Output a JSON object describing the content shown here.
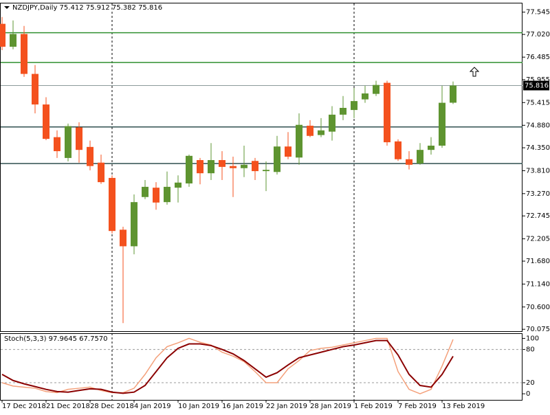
{
  "chart_data": [
    {
      "type": "candlestick",
      "title": "NZDJPY,Daily  75.412 75.912 75.382 75.816",
      "categories": [
        "17 Dec 2018",
        null,
        null,
        null,
        "21 Dec 2018",
        null,
        null,
        null,
        "28 Dec 2018",
        null,
        null,
        null,
        "4 Jan 2019",
        null,
        null,
        null,
        "10 Jan 2019",
        null,
        null,
        null,
        "16 Jan 2019",
        null,
        null,
        null,
        "22 Jan 2019",
        null,
        null,
        null,
        "28 Jan 2019",
        null,
        null,
        null,
        "1 Feb 2019",
        null,
        null,
        null,
        "7 Feb 2019",
        null,
        null,
        null,
        "13 Feb 2019",
        null
      ],
      "open": [
        77.27,
        76.73,
        77.03,
        76.09,
        75.37,
        74.6,
        74.11,
        74.83,
        74.37,
        74.0,
        73.64,
        72.42,
        72.03,
        73.19,
        73.41,
        73.07,
        73.41,
        73.51,
        74.06,
        73.75,
        74.06,
        73.92,
        73.87,
        74.04,
        73.8,
        73.78,
        74.38,
        74.12,
        74.87,
        74.65,
        74.73,
        75.13,
        75.24,
        75.49,
        75.62,
        75.88,
        74.5,
        74.08,
        73.98,
        74.3,
        74.4,
        75.412
      ],
      "high": [
        77.43,
        77.35,
        77.22,
        76.3,
        75.54,
        74.76,
        74.92,
        74.95,
        74.52,
        74.19,
        73.7,
        72.49,
        73.25,
        73.59,
        73.54,
        73.79,
        73.7,
        74.19,
        74.11,
        74.46,
        74.27,
        74.14,
        74.4,
        74.11,
        74.03,
        74.63,
        74.72,
        75.16,
        75.0,
        75.05,
        75.33,
        75.57,
        75.76,
        75.81,
        75.93,
        75.93,
        74.55,
        74.27,
        74.46,
        74.6,
        75.81,
        75.912
      ],
      "low": [
        76.65,
        76.67,
        76.02,
        75.16,
        74.53,
        74.11,
        74.03,
        74.0,
        73.82,
        73.5,
        72.33,
        70.22,
        71.84,
        73.14,
        72.89,
        73.01,
        73.06,
        73.43,
        73.49,
        73.59,
        73.59,
        73.19,
        73.66,
        73.59,
        73.33,
        73.72,
        74.08,
        73.95,
        74.6,
        74.6,
        74.52,
        75.0,
        75.05,
        75.41,
        75.57,
        74.4,
        74.04,
        73.84,
        73.95,
        74.19,
        74.35,
        75.382
      ],
      "close": [
        76.73,
        77.03,
        76.09,
        75.37,
        74.56,
        74.27,
        74.86,
        74.3,
        73.92,
        73.54,
        72.39,
        72.03,
        73.07,
        73.43,
        73.06,
        73.43,
        73.53,
        74.16,
        73.75,
        74.06,
        73.9,
        73.87,
        73.95,
        73.8,
        73.83,
        74.38,
        74.14,
        74.89,
        74.63,
        74.76,
        75.13,
        75.29,
        75.45,
        75.63,
        75.83,
        74.48,
        74.08,
        73.95,
        74.3,
        74.4,
        75.41,
        75.816
      ],
      "up_color": "#5e9430",
      "down_color": "#f4511e",
      "ylim": [
        70.03,
        77.75
      ],
      "yticks": [
        77.545,
        {
          "value": 77.02,
          "label": "77.020"
        },
        76.485,
        75.955,
        75.415,
        {
          "value": 74.88,
          "label": "74.880"
        },
        {
          "value": 74.35,
          "label": "74.350"
        },
        {
          "value": 73.81,
          "label": "73.810"
        },
        {
          "value": 73.27,
          "label": "73.270"
        },
        72.745,
        72.205,
        {
          "value": 71.68,
          "label": "71.680"
        },
        {
          "value": 71.14,
          "label": "71.140"
        },
        {
          "value": 70.6,
          "label": "70.600"
        },
        70.075
      ],
      "hlines": [
        {
          "value": 77.06,
          "color": "#2f8f2f"
        },
        {
          "value": 76.36,
          "color": "#2f8f2f"
        },
        {
          "value": 74.84,
          "color": "#2f4f4f"
        },
        {
          "value": 73.98,
          "color": "#2f4f4f"
        }
      ],
      "last_price": 75.816
    },
    {
      "type": "line",
      "title": "Stoch(5,3,3) 97.9645 67.7570",
      "series": [
        {
          "color": "#f4a07a",
          "values": [
            20,
            14,
            12,
            10,
            4,
            2,
            8,
            10,
            12,
            6,
            2,
            2,
            10,
            35,
            65,
            85,
            92,
            100,
            93,
            88,
            75,
            68,
            58,
            40,
            20,
            20,
            45,
            60,
            78,
            82,
            84,
            88,
            92,
            96,
            100,
            100,
            40,
            8,
            0,
            8,
            50,
            97.9645
          ]
        },
        {
          "color": "#8b0000",
          "values": [
            35,
            24,
            18,
            13,
            8,
            4,
            3,
            6,
            9,
            8,
            3,
            1,
            3,
            15,
            40,
            65,
            82,
            90,
            90,
            87,
            80,
            72,
            60,
            45,
            30,
            38,
            52,
            65,
            70,
            75,
            80,
            85,
            88,
            92,
            96,
            96,
            70,
            35,
            15,
            12,
            35,
            67.757
          ]
        }
      ],
      "ylim": [
        -11,
        108
      ],
      "yticks": [
        100,
        80,
        20,
        0
      ],
      "levels": [
        80,
        20
      ]
    }
  ]
}
